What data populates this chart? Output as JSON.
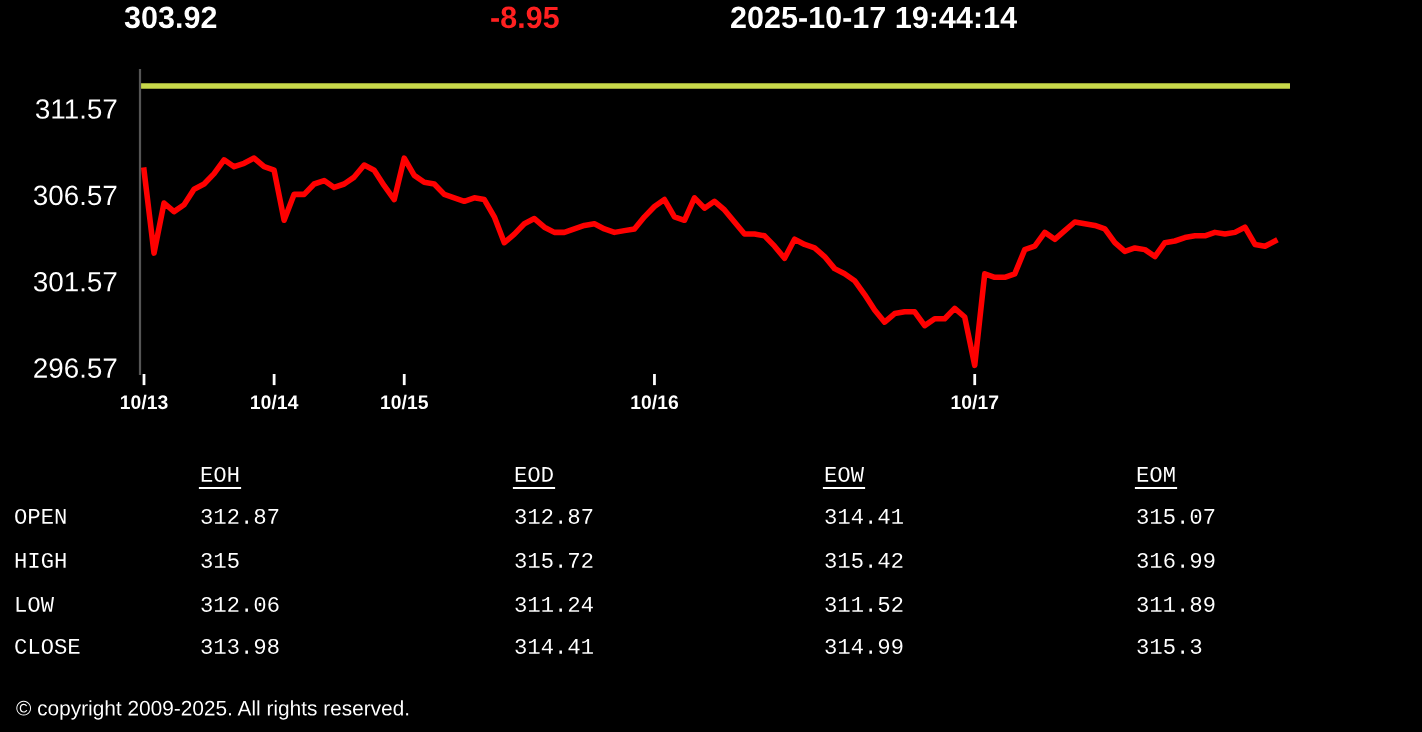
{
  "chart_data": {
    "type": "line",
    "title": "303.92",
    "subtitle": "-8.95",
    "categories": [
      "10/13",
      null,
      null,
      null,
      null,
      null,
      null,
      null,
      null,
      null,
      null,
      null,
      null,
      "10/14",
      null,
      null,
      null,
      null,
      null,
      null,
      null,
      null,
      null,
      null,
      null,
      null,
      "10/15",
      null,
      null,
      null,
      null,
      null,
      null,
      null,
      null,
      null,
      null,
      null,
      null,
      null,
      null,
      null,
      null,
      null,
      null,
      null,
      null,
      null,
      null,
      null,
      null,
      "10/16",
      null,
      null,
      null,
      null,
      null,
      null,
      null,
      null,
      null,
      null,
      null,
      null,
      null,
      null,
      null,
      null,
      null,
      null,
      null,
      null,
      null,
      null,
      null,
      null,
      null,
      null,
      null,
      null,
      null,
      null,
      null,
      "10/17",
      null,
      null,
      null,
      null,
      null,
      null,
      null,
      null,
      null,
      null,
      null,
      null,
      null,
      null,
      null,
      null,
      null,
      null,
      null,
      null,
      null,
      null,
      null,
      null,
      null,
      null,
      null,
      null,
      null,
      null
    ],
    "series": [
      {
        "color": "#ff0000",
        "values": [
          308.0,
          303.2,
          306.1,
          305.6,
          306.0,
          306.9,
          307.2,
          307.8,
          308.6,
          308.2,
          308.4,
          308.7,
          308.2,
          308.0,
          305.1,
          306.6,
          306.6,
          307.2,
          307.4,
          307.0,
          307.2,
          307.6,
          308.3,
          308.0,
          307.1,
          306.3,
          308.7,
          307.7,
          307.3,
          307.2,
          306.6,
          306.4,
          306.2,
          306.4,
          306.3,
          305.3,
          303.8,
          304.3,
          304.9,
          305.2,
          304.7,
          304.4,
          304.4,
          304.6,
          304.8,
          304.9,
          304.6,
          304.4,
          304.5,
          304.6,
          305.3,
          305.9,
          306.3,
          305.3,
          305.1,
          306.4,
          305.8,
          306.2,
          305.7,
          305.0,
          304.3,
          304.3,
          304.2,
          303.6,
          302.9,
          304.0,
          303.7,
          303.5,
          303.0,
          302.3,
          302.0,
          301.6,
          300.8,
          299.9,
          299.2,
          299.7,
          299.8,
          299.8,
          299.0,
          299.4,
          299.4,
          300.0,
          299.5,
          296.7,
          302.0,
          301.8,
          301.8,
          302.0,
          303.4,
          303.6,
          304.4,
          304.0,
          304.5,
          305.0,
          304.9,
          304.8,
          304.6,
          303.8,
          303.3,
          303.5,
          303.4,
          303.0,
          303.8,
          303.9,
          304.1,
          304.2,
          304.2,
          304.4,
          304.3,
          304.4,
          304.7,
          303.7,
          303.6,
          303.9
        ]
      }
    ],
    "ylim": [
      296.2,
      313.8
    ],
    "yticks": [
      296.57,
      301.57,
      306.57,
      311.57
    ],
    "ref_lines": [
      {
        "axis": "y",
        "value": 312.87,
        "color": "#c8d84a"
      }
    ],
    "grid": false,
    "legend": false,
    "marker": "none",
    "line_style": "solid",
    "annotations": [
      "2025-10-17 19:44:14",
      "EOH",
      "EOD",
      "EOW",
      "EOM",
      "OPEN",
      "312.87",
      "312.87",
      "314.41",
      "315.07",
      "HIGH",
      "315",
      "315.72",
      "315.42",
      "316.99",
      "LOW",
      "312.06",
      "311.24",
      "311.52",
      "311.89",
      "CLOSE",
      "313.98",
      "314.41",
      "314.99",
      "315.3",
      "© copyright 2009-2025. All rights reserved."
    ]
  }
}
